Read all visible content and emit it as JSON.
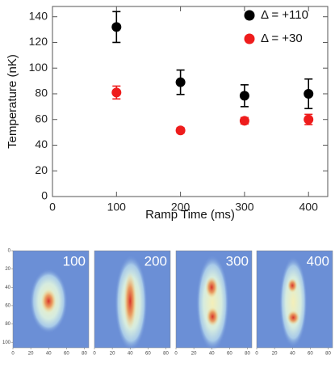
{
  "chart_data": [
    {
      "type": "scatter",
      "x_label": "Ramp Time (ms)",
      "y_label": "Temperature (nK)",
      "x": [
        100,
        200,
        300,
        400
      ],
      "series": [
        {
          "name": "Δ = +110",
          "color": "#000000",
          "values": [
            132,
            89,
            78.5,
            80
          ],
          "errors": [
            12,
            9.5,
            8.5,
            11.5
          ]
        },
        {
          "name": "Δ = +30",
          "color": "#ee1c1c",
          "values": [
            81,
            51.5,
            59,
            60
          ],
          "errors": [
            5,
            2,
            2.5,
            4
          ]
        }
      ],
      "xlim": [
        0,
        430
      ],
      "ylim": [
        0,
        148
      ],
      "xticks": [
        0,
        100,
        200,
        300,
        400
      ],
      "yticks": [
        0,
        20,
        40,
        60,
        80,
        100,
        120,
        140
      ],
      "legend": "upper right"
    },
    {
      "type": "image",
      "labels": [
        "100",
        "200",
        "300",
        "400"
      ],
      "xlim": [
        0,
        85
      ],
      "ylim": [
        0,
        106
      ],
      "xticks": [
        0,
        20,
        40,
        60,
        80
      ],
      "yticks": [
        0,
        20,
        40,
        60,
        80,
        100
      ]
    }
  ]
}
